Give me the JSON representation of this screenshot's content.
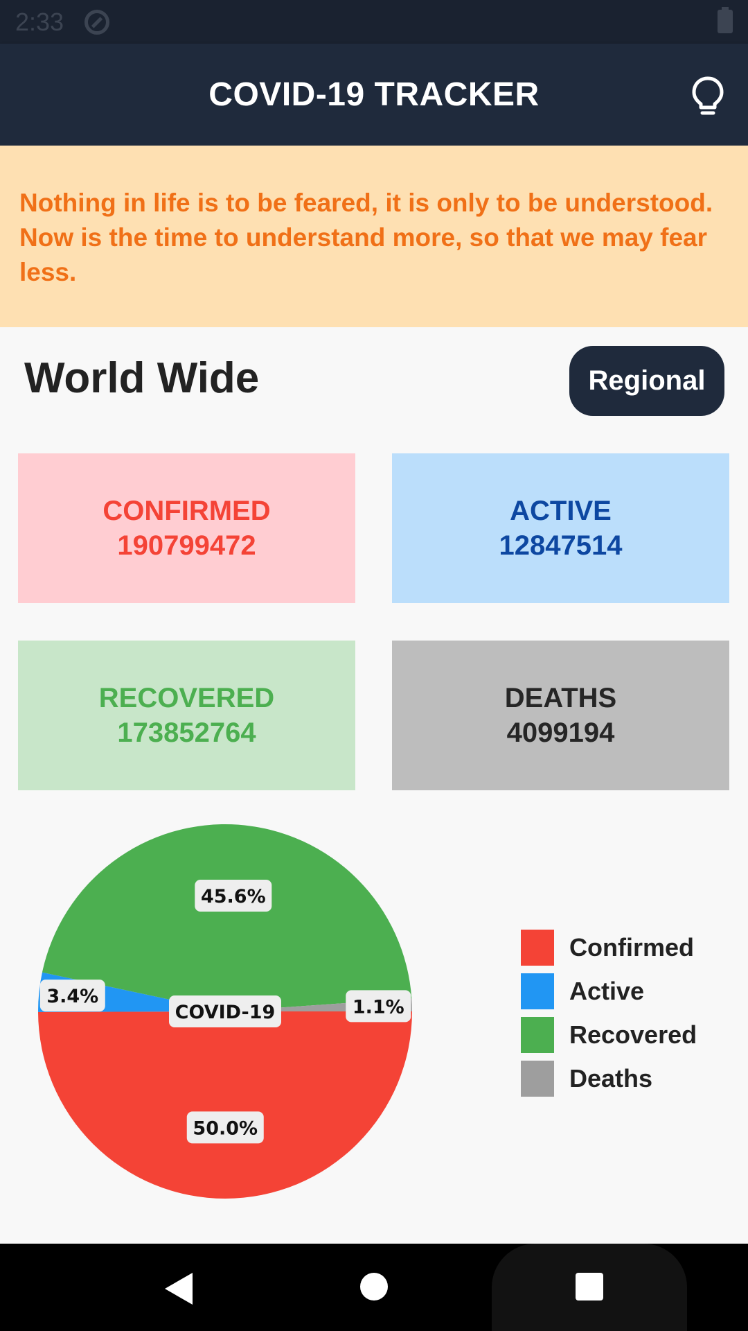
{
  "status_bar": {
    "time": "2:33"
  },
  "app_bar": {
    "title": "COVID-19 TRACKER",
    "action_icon": "lightbulb-icon"
  },
  "quote": "Nothing in life is to be feared, it is only to be understood. Now is the time to understand more, so that we may fear less.",
  "section": {
    "title": "World Wide",
    "regional_button": "Regional"
  },
  "stats": {
    "confirmed": {
      "label": "CONFIRMED",
      "value": "190799472",
      "color": "#f44336",
      "bg": "#ffcdd2"
    },
    "active": {
      "label": "ACTIVE",
      "value": "12847514",
      "color": "#0d47a1",
      "bg": "#bbdefb"
    },
    "recovered": {
      "label": "RECOVERED",
      "value": "173852764",
      "color": "#4caf50",
      "bg": "#c8e6c9"
    },
    "deaths": {
      "label": "DEATHS",
      "value": "4099194",
      "color": "#262626",
      "bg": "#bdbdbd"
    }
  },
  "chart_data": {
    "type": "pie",
    "center_label": "COVID-19",
    "slices": [
      {
        "name": "Confirmed",
        "value": 50.0,
        "label": "50.0%",
        "color": "#f44336"
      },
      {
        "name": "Active",
        "value": 3.4,
        "label": "3.4%",
        "color": "#2196f3"
      },
      {
        "name": "Recovered",
        "value": 45.6,
        "label": "45.6%",
        "color": "#4caf50"
      },
      {
        "name": "Deaths",
        "value": 1.1,
        "label": "1.1%",
        "color": "#9e9e9e"
      }
    ],
    "legend_position": "right"
  },
  "nav_bar": {
    "icons": [
      "back-icon",
      "home-icon",
      "recent-apps-icon"
    ]
  }
}
